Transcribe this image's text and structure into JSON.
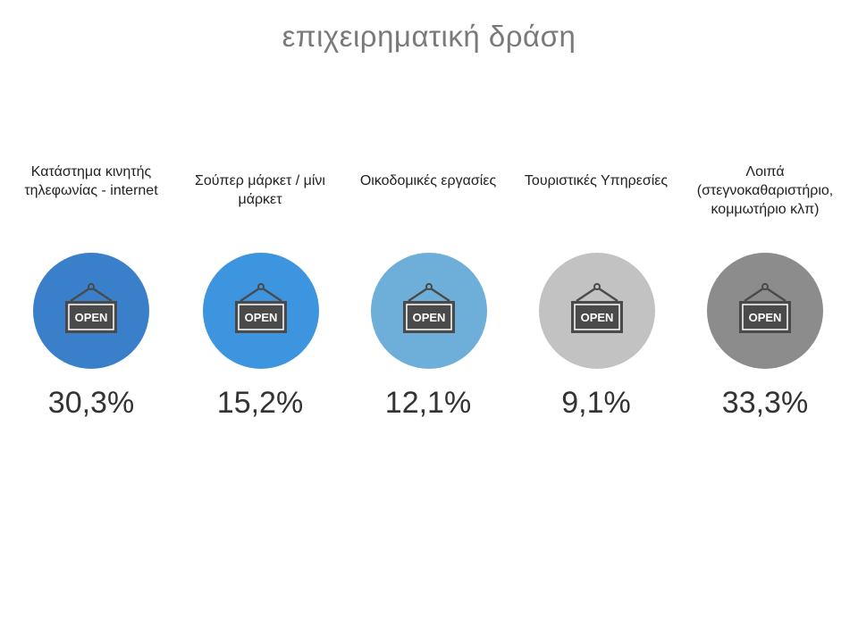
{
  "title": "επιχειρηματική δράση",
  "categories": [
    {
      "label": "Κατάστημα κινητής τηλεφωνίας - internet",
      "value": "30,3%",
      "color": "#3a7fca",
      "sign_text": "OPEN",
      "icon": "open-sign-icon"
    },
    {
      "label": "Σούπερ μάρκετ / μίνι μάρκετ",
      "value": "15,2%",
      "color": "#3d95e0",
      "sign_text": "OPEN",
      "icon": "open-sign-icon"
    },
    {
      "label": "Οικοδομικές εργασίες",
      "value": "12,1%",
      "color": "#6eafd9",
      "sign_text": "OPEN",
      "icon": "open-sign-icon"
    },
    {
      "label": "Τουριστικές Υπηρεσίες",
      "value": "9,1%",
      "color": "#c2c2c2",
      "sign_text": "OPEN",
      "icon": "open-sign-icon"
    },
    {
      "label": "Λοιπά (στεγνοκαθαριστήριο, κομμωτήριο κλπ)",
      "value": "33,3%",
      "color": "#8c8c8c",
      "sign_text": "OPEN",
      "icon": "open-sign-icon"
    }
  ]
}
